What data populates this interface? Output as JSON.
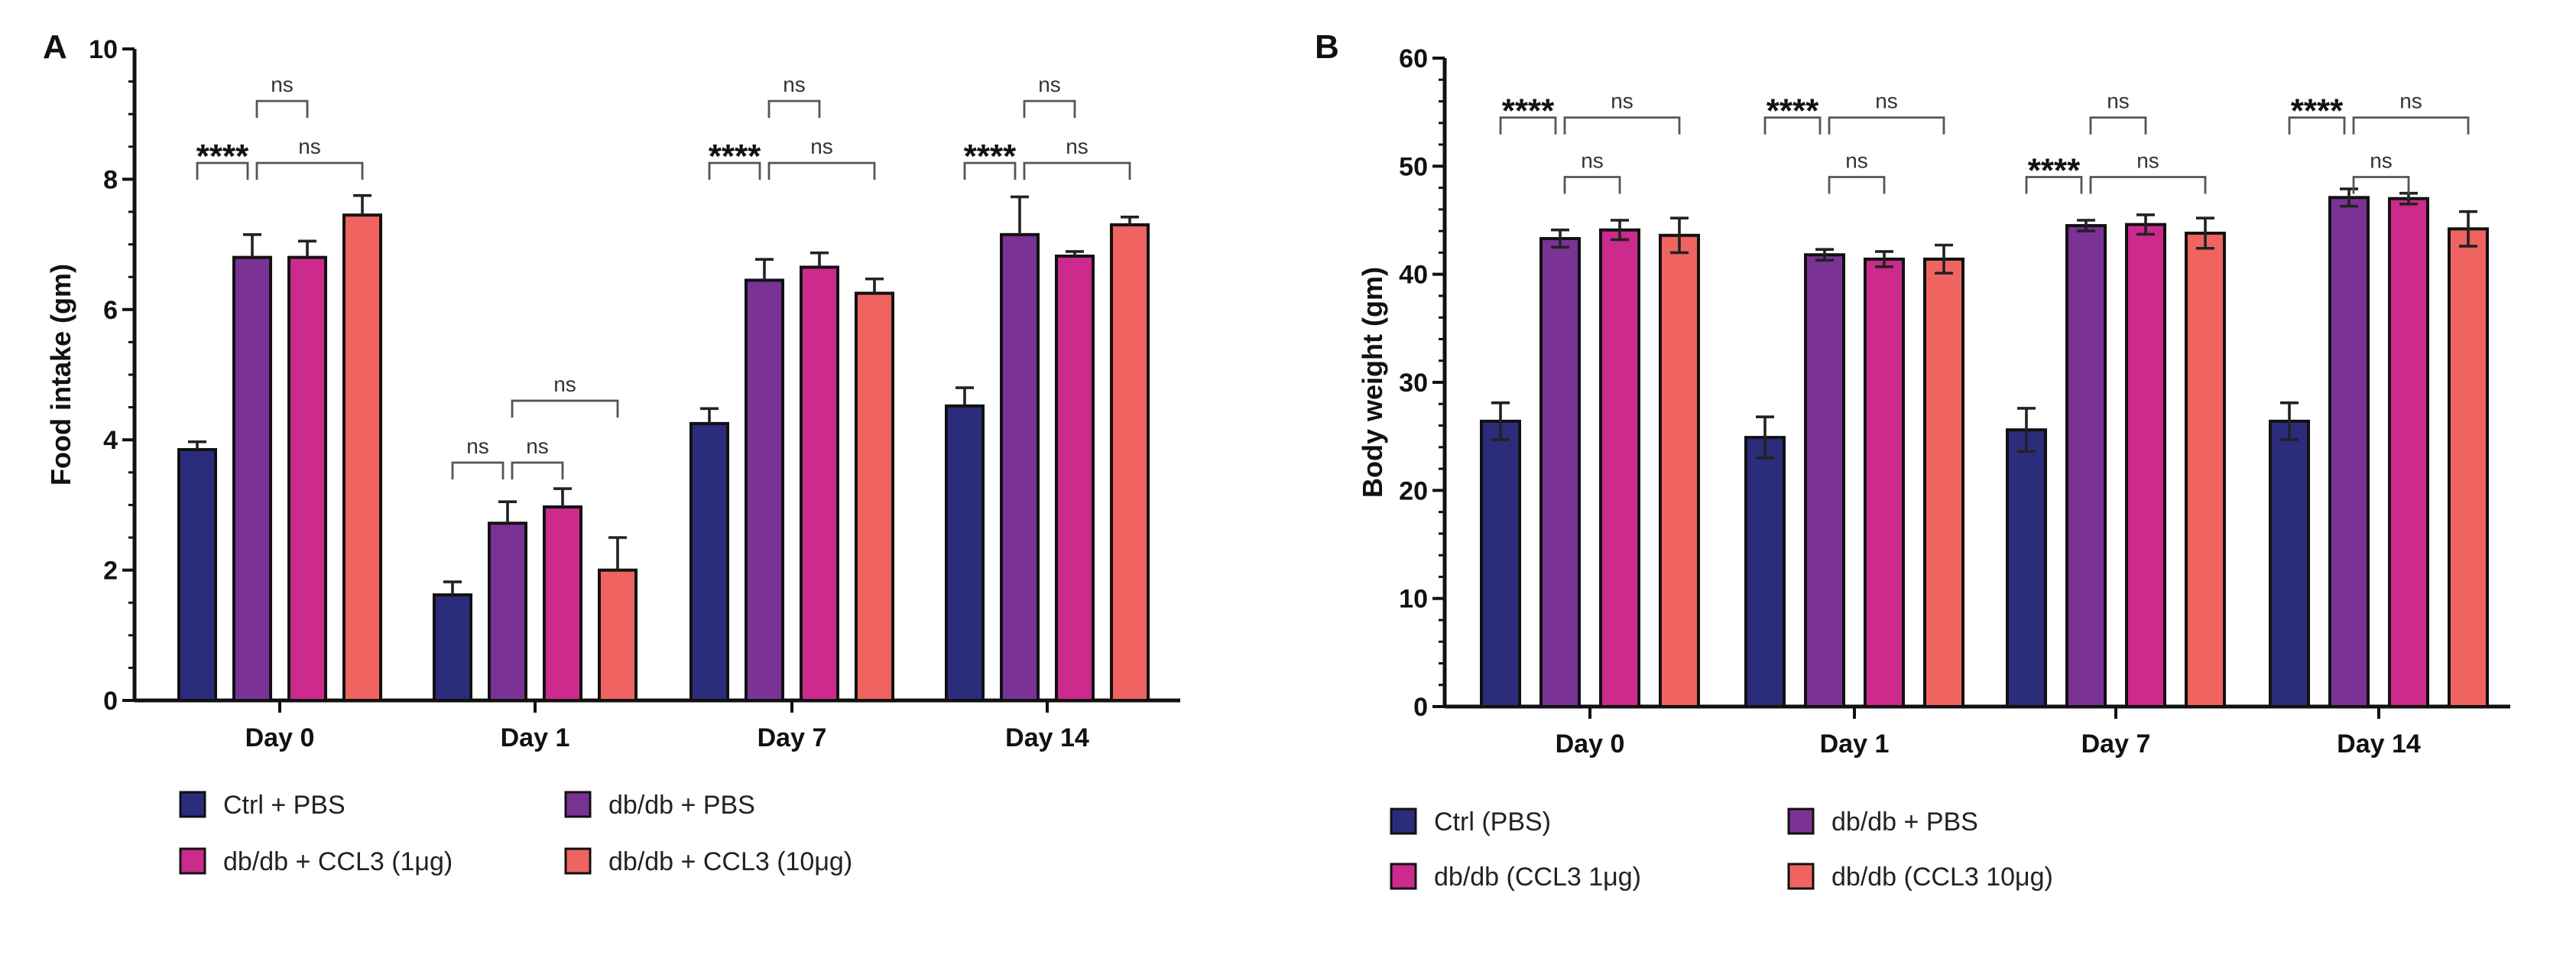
{
  "colors": {
    "ctrl": "#2b2c7c",
    "dbdb_pbs": "#7a3294",
    "ccl3_1": "#cc2a8c",
    "ccl3_10": "#ef6461"
  },
  "chart_data": [
    {
      "type": "bar",
      "panel_label": "A",
      "ylabel": "Food intake (gm)",
      "xlabel": "",
      "ylim": [
        0,
        10
      ],
      "yticks": [
        0,
        2,
        4,
        6,
        8,
        10
      ],
      "minor_tick_step": 0.5,
      "categories": [
        "Day 0",
        "Day 1",
        "Day 7",
        "Day 14"
      ],
      "legend_placement": "bottom",
      "series": [
        {
          "name": "Ctrl + PBS",
          "color": "#2b2c7c",
          "values": [
            3.85,
            1.62,
            4.25,
            4.52
          ],
          "errors": [
            0.12,
            0.2,
            0.23,
            0.28
          ]
        },
        {
          "name": "db/db + PBS",
          "color": "#7a3294",
          "values": [
            6.8,
            2.72,
            6.45,
            7.15
          ],
          "errors": [
            0.35,
            0.33,
            0.32,
            0.58
          ]
        },
        {
          "name": "db/db + CCL3 (1μg)",
          "color": "#cc2a8c",
          "values": [
            6.8,
            2.97,
            6.65,
            6.82
          ],
          "errors": [
            0.25,
            0.28,
            0.22,
            0.07
          ]
        },
        {
          "name": "db/db + CCL3 (10μg)",
          "color": "#ef6461",
          "values": [
            7.45,
            2.0,
            6.25,
            7.3
          ],
          "errors": [
            0.3,
            0.5,
            0.22,
            0.12
          ]
        }
      ],
      "significance": [
        {
          "category": 0,
          "from": 0,
          "to": 1,
          "label": "****",
          "y": 8.25
        },
        {
          "category": 0,
          "from": 1,
          "to": 3,
          "label": "ns",
          "y": 8.25
        },
        {
          "category": 0,
          "from": 1,
          "to": 2,
          "label": "ns",
          "y": 9.2
        },
        {
          "category": 1,
          "from": 0,
          "to": 1,
          "label": "ns",
          "y": 3.65
        },
        {
          "category": 1,
          "from": 1,
          "to": 2,
          "label": "ns",
          "y": 3.65
        },
        {
          "category": 1,
          "from": 1,
          "to": 3,
          "label": "ns",
          "y": 4.6
        },
        {
          "category": 2,
          "from": 0,
          "to": 1,
          "label": "****",
          "y": 8.25
        },
        {
          "category": 2,
          "from": 1,
          "to": 3,
          "label": "ns",
          "y": 8.25
        },
        {
          "category": 2,
          "from": 1,
          "to": 2,
          "label": "ns",
          "y": 9.2
        },
        {
          "category": 3,
          "from": 0,
          "to": 1,
          "label": "****",
          "y": 8.25
        },
        {
          "category": 3,
          "from": 1,
          "to": 3,
          "label": "ns",
          "y": 8.25
        },
        {
          "category": 3,
          "from": 1,
          "to": 2,
          "label": "ns",
          "y": 9.2
        }
      ]
    },
    {
      "type": "bar",
      "panel_label": "B",
      "ylabel": "Body weight (gm)",
      "xlabel": "",
      "ylim": [
        0,
        60
      ],
      "yticks": [
        0,
        10,
        20,
        30,
        40,
        50,
        60
      ],
      "minor_tick_step": 2,
      "categories": [
        "Day 0",
        "Day 1",
        "Day 7",
        "Day 14"
      ],
      "legend_placement": "bottom",
      "series": [
        {
          "name": "Ctrl (PBS)",
          "color": "#2b2c7c",
          "values": [
            26.4,
            24.9,
            25.6,
            26.4
          ],
          "errors": [
            1.7,
            1.9,
            2.0,
            1.7
          ]
        },
        {
          "name": "db/db + PBS",
          "color": "#7a3294",
          "values": [
            43.3,
            41.8,
            44.5,
            47.1
          ],
          "errors": [
            0.8,
            0.5,
            0.5,
            0.8
          ]
        },
        {
          "name": "db/db (CCL3 1μg)",
          "color": "#cc2a8c",
          "values": [
            44.1,
            41.4,
            44.6,
            47.0
          ],
          "errors": [
            0.9,
            0.7,
            0.9,
            0.5
          ]
        },
        {
          "name": "db/db (CCL3 10μg)",
          "color": "#ef6461",
          "values": [
            43.6,
            41.4,
            43.8,
            44.2
          ],
          "errors": [
            1.6,
            1.3,
            1.4,
            1.6
          ]
        }
      ],
      "significance": [
        {
          "category": 0,
          "from": 0,
          "to": 1,
          "label": "****",
          "y": 54.5
        },
        {
          "category": 0,
          "from": 1,
          "to": 3,
          "label": "ns",
          "y": 54.5
        },
        {
          "category": 0,
          "from": 1,
          "to": 2,
          "label": "ns",
          "y": 49
        },
        {
          "category": 1,
          "from": 0,
          "to": 1,
          "label": "****",
          "y": 54.5
        },
        {
          "category": 1,
          "from": 1,
          "to": 3,
          "label": "ns",
          "y": 54.5
        },
        {
          "category": 1,
          "from": 1,
          "to": 2,
          "label": "ns",
          "y": 49
        },
        {
          "category": 2,
          "from": 1,
          "to": 2,
          "label": "ns",
          "y": 54.5
        },
        {
          "category": 2,
          "from": 0,
          "to": 1,
          "label": "****",
          "y": 49
        },
        {
          "category": 2,
          "from": 1,
          "to": 3,
          "label": "ns",
          "y": 49
        },
        {
          "category": 3,
          "from": 0,
          "to": 1,
          "label": "****",
          "y": 54.5
        },
        {
          "category": 3,
          "from": 1,
          "to": 3,
          "label": "ns",
          "y": 54.5
        },
        {
          "category": 3,
          "from": 1,
          "to": 2,
          "label": "ns",
          "y": 49
        }
      ]
    }
  ]
}
